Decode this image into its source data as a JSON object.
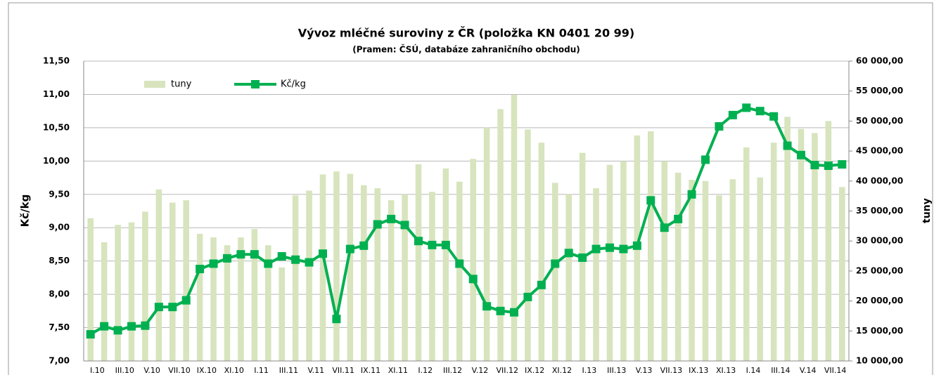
{
  "chart_data": {
    "type": "combo",
    "title": "Vývoz mléčné suroviny z ČR (položka KN 0401 20 99)",
    "subtitle": "(Pramen: ČSÚ, databáze zahraničního obchodu)",
    "y_label": "Kč/kg",
    "y2_label": "tuny",
    "categories": [
      "I.10",
      null,
      "III.10",
      null,
      "V.10",
      null,
      "VII.10",
      null,
      "IX.10",
      null,
      "XI.10",
      null,
      "I.11",
      null,
      "III.11",
      null,
      "V.11",
      null,
      "VII.11",
      null,
      "IX.11",
      null,
      "XI.11",
      null,
      "I.12",
      null,
      "III.12",
      null,
      "V.12",
      null,
      "VII.12",
      null,
      "IX.12",
      null,
      "XI.12",
      null,
      "I.13",
      null,
      "III.13",
      null,
      "V.13",
      null,
      "VII.13",
      null,
      "IX.13",
      null,
      "XI.13",
      null,
      "I.14",
      null,
      "III.14",
      null,
      "V.14",
      null,
      "VII.14",
      null
    ],
    "series": [
      {
        "name": "tuny",
        "type": "bar",
        "axis": "y2",
        "color": "#d7e4bd",
        "values": [
          33800,
          29800,
          32700,
          33100,
          34900,
          38600,
          36400,
          36800,
          31200,
          30600,
          29300,
          30600,
          32000,
          29300,
          25600,
          37600,
          38400,
          41100,
          41600,
          41200,
          39300,
          38800,
          36800,
          37800,
          42800,
          38200,
          42100,
          39900,
          43700,
          48900,
          52000,
          54400,
          48600,
          46400,
          39700,
          37800,
          44700,
          38800,
          42700,
          43300,
          47600,
          48300,
          43300,
          41400,
          40200,
          40000,
          37600,
          40300,
          45600,
          40600,
          46400,
          50700,
          48700,
          48000,
          50000,
          39000
        ]
      },
      {
        "name": "Kč/kg",
        "type": "line",
        "axis": "y",
        "color": "#00b050",
        "values": [
          7.4,
          7.52,
          7.46,
          7.52,
          7.53,
          7.81,
          7.81,
          7.91,
          8.38,
          8.46,
          8.54,
          8.6,
          8.6,
          8.46,
          8.57,
          8.52,
          8.48,
          8.61,
          7.63,
          8.68,
          8.73,
          9.05,
          9.13,
          9.04,
          8.8,
          8.74,
          8.74,
          8.46,
          8.23,
          7.82,
          7.75,
          7.73,
          7.96,
          8.14,
          8.46,
          8.62,
          8.55,
          8.68,
          8.7,
          8.68,
          8.73,
          9.41,
          9.0,
          9.13,
          9.5,
          10.02,
          10.52,
          10.69,
          10.8,
          10.75,
          10.67,
          10.23,
          10.09,
          9.94,
          9.93,
          9.95
        ]
      }
    ],
    "ylim": [
      7,
      11.5
    ],
    "yticks": [
      {
        "value": 7,
        "label": "7,00"
      },
      {
        "value": 7.5,
        "label": "7,50"
      },
      {
        "value": 8,
        "label": "8,00"
      },
      {
        "value": 8.5,
        "label": "8,50"
      },
      {
        "value": 9,
        "label": "9,00"
      },
      {
        "value": 9.5,
        "label": "9,50"
      },
      {
        "value": 10,
        "label": "10,00"
      },
      {
        "value": 10.5,
        "label": "10,50"
      },
      {
        "value": 11,
        "label": "11,00"
      },
      {
        "value": 11.5,
        "label": "11,50"
      }
    ],
    "y2lim": [
      10000,
      60000
    ],
    "y2ticks": [
      {
        "value": 10000,
        "label": "10 000,00"
      },
      {
        "value": 15000,
        "label": "15 000,00"
      },
      {
        "value": 20000,
        "label": "20 000,00"
      },
      {
        "value": 25000,
        "label": "25 000,00"
      },
      {
        "value": 30000,
        "label": "30 000,00"
      },
      {
        "value": 35000,
        "label": "35 000,00"
      },
      {
        "value": 40000,
        "label": "40 000,00"
      },
      {
        "value": 45000,
        "label": "45 000,00"
      },
      {
        "value": 50000,
        "label": "50 000,00"
      },
      {
        "value": 55000,
        "label": "55 000,00"
      },
      {
        "value": 60000,
        "label": "60 000,00"
      }
    ],
    "grid": true,
    "legend": "top-left"
  }
}
